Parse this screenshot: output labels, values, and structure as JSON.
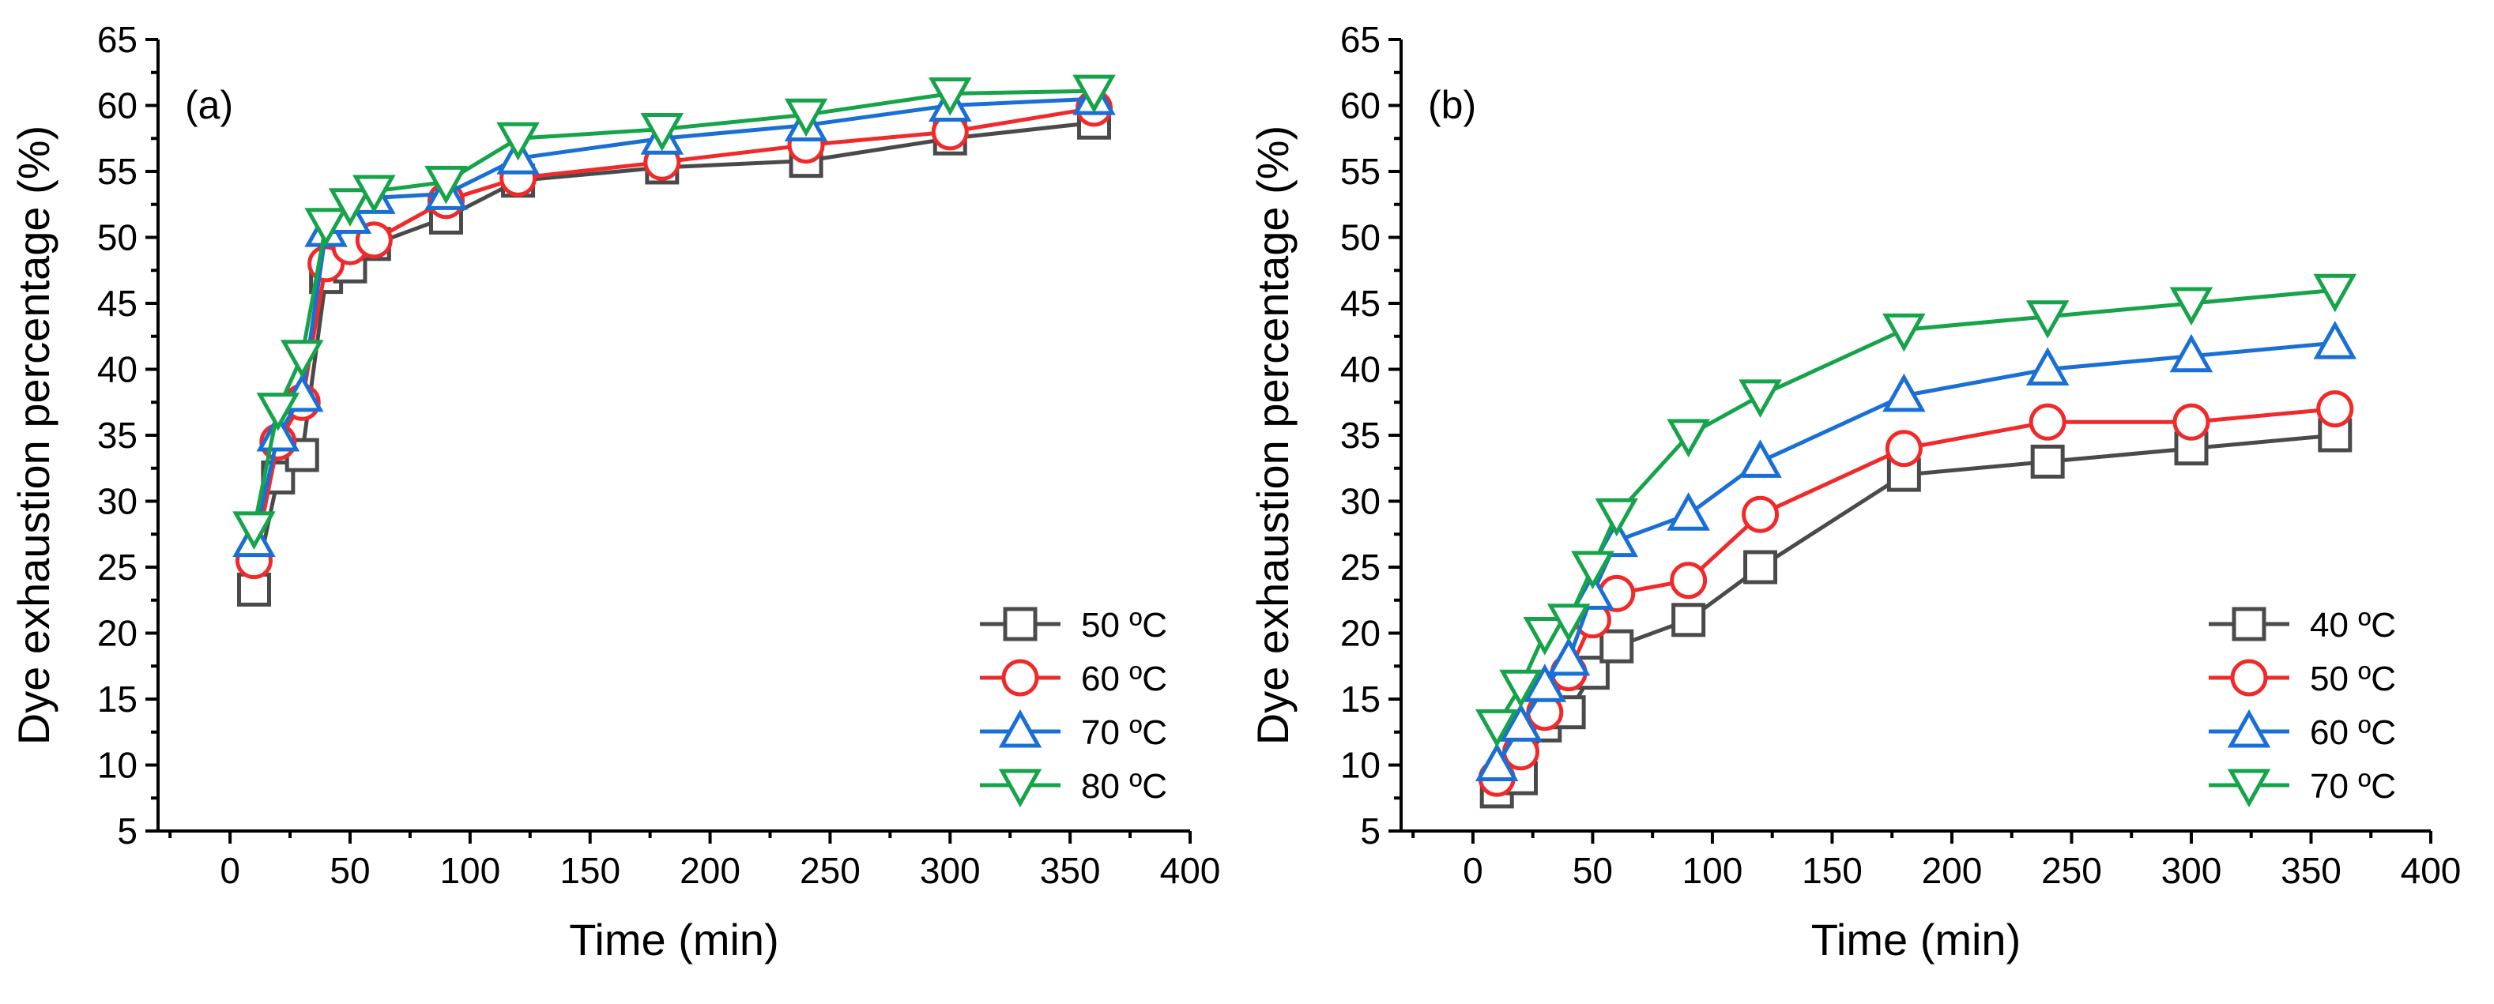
{
  "chart_data": [
    {
      "type": "line",
      "panel_label": "(a)",
      "title": "",
      "xlabel": "Time (min)",
      "ylabel": "Dye exhaustion percentage (%)",
      "xlim": [
        -30,
        400
      ],
      "ylim": [
        5,
        65
      ],
      "xticks": [
        0,
        50,
        100,
        150,
        200,
        250,
        300,
        350,
        400
      ],
      "yticks": [
        5,
        10,
        15,
        20,
        25,
        30,
        35,
        40,
        45,
        50,
        55,
        60,
        65
      ],
      "legend_position": "bottom-right",
      "x": [
        10,
        20,
        30,
        40,
        50,
        60,
        90,
        120,
        180,
        240,
        300,
        360
      ],
      "series": [
        {
          "name": "50 ºC",
          "color": "#4a4a4a",
          "marker": "square",
          "values": [
            23.3,
            31.8,
            33.5,
            47.0,
            47.8,
            49.5,
            51.5,
            54.3,
            55.3,
            55.8,
            57.5,
            58.7
          ]
        },
        {
          "name": "60 ºC",
          "color": "#f02a2a",
          "marker": "circle",
          "values": [
            25.5,
            34.5,
            37.5,
            48.0,
            49.3,
            49.8,
            52.8,
            54.5,
            55.7,
            57.0,
            58.0,
            59.8
          ]
        },
        {
          "name": "70 ºC",
          "color": "#1a6fd6",
          "marker": "triangle-up",
          "values": [
            27.0,
            35.0,
            38.0,
            50.5,
            51.5,
            53.0,
            53.3,
            56.0,
            57.5,
            58.5,
            60.0,
            60.5
          ]
        },
        {
          "name": "80 ºC",
          "color": "#16a34a",
          "marker": "triangle-down",
          "values": [
            28.0,
            37.0,
            41.0,
            51.0,
            52.5,
            53.5,
            54.2,
            57.5,
            58.2,
            59.3,
            60.9,
            61.1
          ]
        }
      ]
    },
    {
      "type": "line",
      "panel_label": "(b)",
      "title": "",
      "xlabel": "Time (min)",
      "ylabel": "Dye exhaustion percentage (%)",
      "xlim": [
        -30,
        400
      ],
      "ylim": [
        5,
        65
      ],
      "xticks": [
        0,
        50,
        100,
        150,
        200,
        250,
        300,
        350,
        400
      ],
      "yticks": [
        5,
        10,
        15,
        20,
        25,
        30,
        35,
        40,
        45,
        50,
        55,
        60,
        65
      ],
      "legend_position": "bottom-right",
      "x": [
        10,
        20,
        30,
        40,
        50,
        60,
        90,
        120,
        180,
        240,
        300,
        360
      ],
      "series": [
        {
          "name": "40 ºC",
          "color": "#4a4a4a",
          "marker": "square",
          "values": [
            8,
            9,
            13,
            14,
            17,
            19,
            21,
            25,
            32,
            33,
            34,
            35
          ]
        },
        {
          "name": "50 ºC",
          "color": "#f02a2a",
          "marker": "circle",
          "values": [
            9,
            11,
            14,
            17,
            21,
            23,
            24,
            29,
            34,
            36,
            36,
            37
          ]
        },
        {
          "name": "60 ºC",
          "color": "#1a6fd6",
          "marker": "triangle-up",
          "values": [
            10,
            13,
            16,
            18,
            23,
            27,
            29,
            33,
            38,
            40,
            41,
            42
          ]
        },
        {
          "name": "70 ºC",
          "color": "#16a34a",
          "marker": "triangle-down",
          "values": [
            13,
            16,
            20,
            21,
            25,
            29,
            35,
            38,
            43,
            44,
            45,
            46
          ]
        }
      ]
    }
  ]
}
